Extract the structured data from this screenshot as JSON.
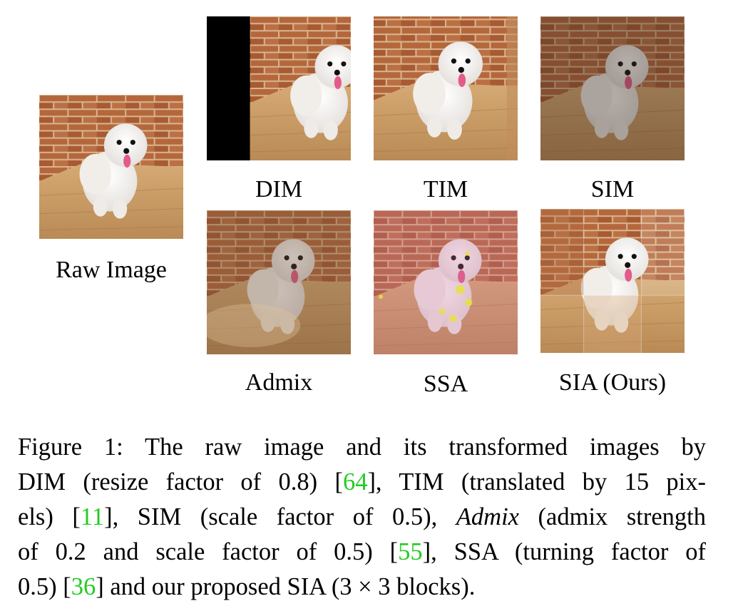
{
  "images": {
    "raw": {
      "label": "Raw Image"
    },
    "dim": {
      "label": "DIM"
    },
    "tim": {
      "label": "TIM"
    },
    "sim": {
      "label": "SIM"
    },
    "admix": {
      "label": "Admix"
    },
    "ssa": {
      "label": "SSA"
    },
    "sia": {
      "label": "SIA (Ours)"
    }
  },
  "caption": {
    "l1": "Figure 1:  The raw image and its transformed images by",
    "l2a": "DIM (resize factor of 0.8) [",
    "c1": "64",
    "l2b": "], TIM (translated by 15 pix-",
    "l3a": "els) [",
    "c2": "11",
    "l3b": "], SIM (scale factor of 0.5), ",
    "l3em": "Admix",
    "l3c": " (admix strength",
    "l4a": "of 0.2 and scale factor of 0.5) [",
    "c3": "55",
    "l4b": "], SSA (turning factor of",
    "l5a": "0.5) [",
    "c4": "36",
    "l5b": "] and our proposed SIA (3 × 3 blocks)."
  },
  "colors": {
    "citation": "#22cc22",
    "brick": "#b5673c",
    "mortar": "#d9b48c",
    "floor": "#c89a62",
    "dog": "#f4f2f0"
  }
}
